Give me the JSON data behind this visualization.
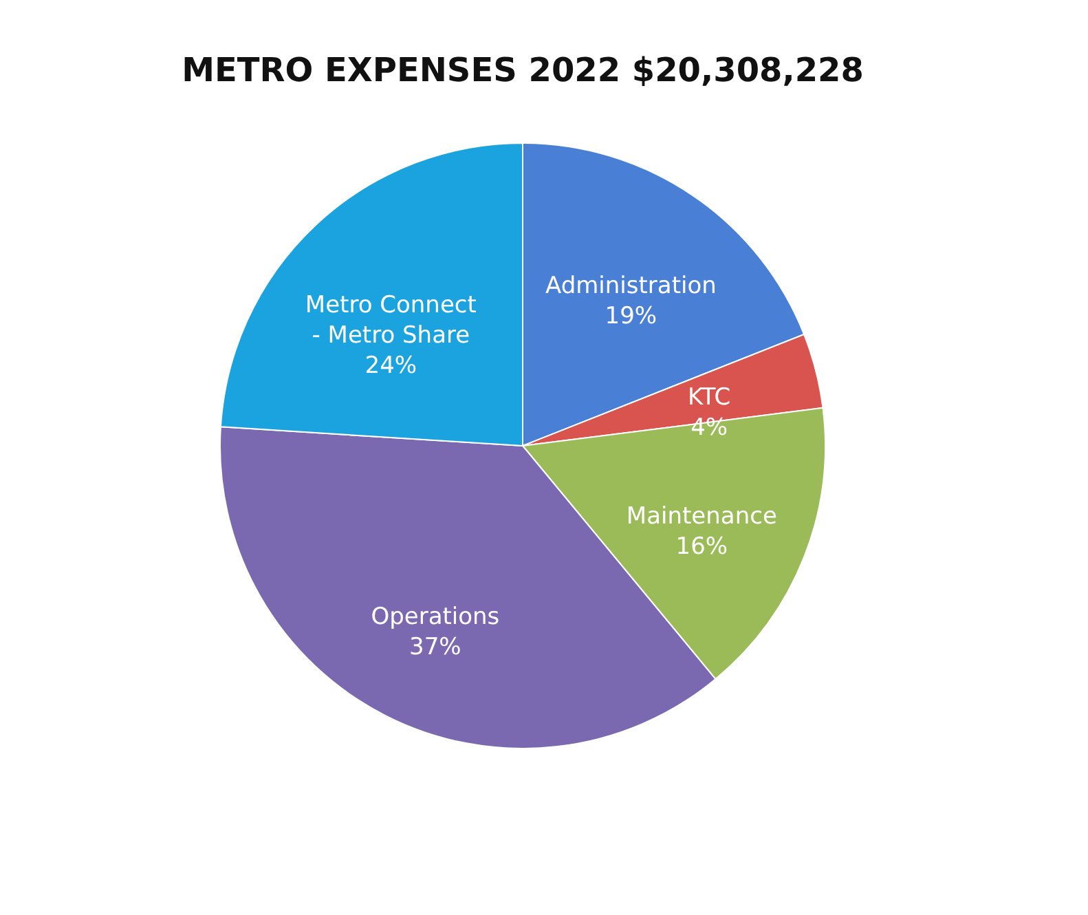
{
  "chart_data": {
    "type": "pie",
    "title": "METRO EXPENSES 2022 $20,308,228",
    "categories": [
      "Administration",
      "KTC",
      "Maintenance",
      "Operations",
      "Metro Connect - Metro Share"
    ],
    "values": [
      19,
      4,
      16,
      37,
      24
    ],
    "value_labels": [
      "19%",
      "4%",
      "16%",
      "37%",
      "24%"
    ],
    "colors": [
      "#4a7fd6",
      "#d9534f",
      "#9bbb59",
      "#7a68b0",
      "#1ba3e0"
    ],
    "legend": false
  }
}
